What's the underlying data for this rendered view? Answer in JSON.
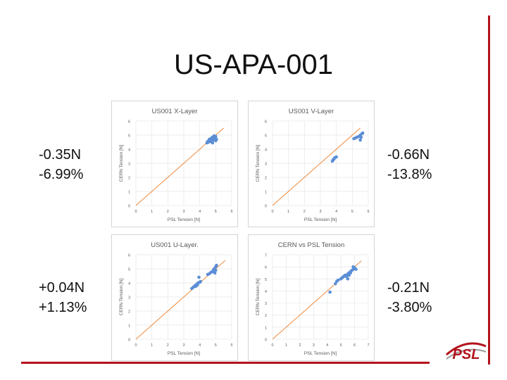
{
  "slide": {
    "title": "US-APA-001",
    "annotations": {
      "x_layer": [
        "-0.35N",
        "-6.99%"
      ],
      "v_layer": [
        "-0.66N",
        "-13.8%"
      ],
      "u_layer": [
        "+0.04N",
        "+1.13%"
      ],
      "all": [
        "-0.21N",
        "-3.80%"
      ]
    },
    "logo_text": "PSL"
  },
  "colors": {
    "points": "#5b8ed6",
    "fit_line": "#f08a3c",
    "accent": "#b3121c"
  },
  "chart_data": [
    {
      "type": "scatter",
      "title": "US001 X-Layer",
      "xlabel": "PSL Tension [N]",
      "ylabel": "CERN Tension [N]",
      "xlim": [
        0,
        6
      ],
      "ylim": [
        0,
        6
      ],
      "xticks": [
        0,
        1,
        2,
        3,
        4,
        5,
        6
      ],
      "yticks": [
        0,
        1,
        2,
        3,
        4,
        5,
        6
      ],
      "reference_line": [
        [
          0,
          0
        ],
        [
          5.5,
          5.5
        ]
      ],
      "x": [
        4.45,
        4.5,
        4.55,
        4.6,
        4.6,
        4.65,
        4.7,
        4.7,
        4.75,
        4.8,
        4.8,
        4.85,
        4.9,
        4.9,
        4.95,
        5.0,
        5.0,
        4.9,
        4.8,
        5.05
      ],
      "y": [
        4.45,
        4.55,
        4.5,
        4.6,
        4.7,
        4.55,
        4.75,
        4.65,
        4.8,
        4.6,
        4.85,
        4.7,
        4.9,
        4.75,
        4.85,
        4.9,
        4.6,
        4.95,
        4.45,
        4.7
      ]
    },
    {
      "type": "scatter",
      "title": "US001 V-Layer",
      "xlabel": "PSL Tension [N]",
      "ylabel": "CERN Tension [N]",
      "xlim": [
        0,
        6
      ],
      "ylim": [
        0,
        6
      ],
      "xticks": [
        0,
        1,
        2,
        3,
        4,
        5,
        6
      ],
      "yticks": [
        0,
        1,
        2,
        3,
        4,
        5,
        6
      ],
      "reference_line": [
        [
          0,
          0
        ],
        [
          5.5,
          5.5
        ]
      ],
      "x": [
        3.75,
        3.8,
        3.85,
        3.9,
        4.0,
        5.1,
        5.2,
        5.3,
        5.4,
        5.5,
        5.55,
        5.6,
        5.65,
        5.5
      ],
      "y": [
        3.15,
        3.25,
        3.3,
        3.4,
        3.45,
        4.75,
        4.8,
        4.85,
        4.9,
        5.0,
        4.85,
        5.1,
        5.15,
        4.65
      ]
    },
    {
      "type": "scatter",
      "title": "US001 U-Layer.",
      "xlabel": "PSL Tension [N]",
      "ylabel": "CERN Tension [N]",
      "xlim": [
        0,
        6
      ],
      "ylim": [
        0,
        6
      ],
      "xticks": [
        0,
        1,
        2,
        3,
        4,
        5,
        6
      ],
      "yticks": [
        0,
        1,
        2,
        3,
        4,
        5,
        6
      ],
      "reference_line": [
        [
          0,
          0
        ],
        [
          5.6,
          5.6
        ]
      ],
      "x": [
        3.5,
        3.6,
        3.7,
        3.75,
        3.8,
        3.85,
        3.9,
        4.0,
        4.05,
        3.95,
        4.5,
        4.6,
        4.7,
        4.8,
        4.85,
        4.9,
        5.0,
        5.0,
        5.05,
        4.95
      ],
      "y": [
        3.6,
        3.7,
        3.8,
        3.75,
        3.9,
        3.85,
        4.0,
        4.05,
        4.1,
        4.4,
        4.6,
        4.65,
        4.75,
        4.8,
        4.9,
        5.0,
        4.9,
        5.15,
        5.25,
        4.7
      ]
    },
    {
      "type": "scatter",
      "title": "CERN vs PSL Tension",
      "xlabel": "PSL Tension [N]",
      "ylabel": "CERN Tension [N]",
      "xlim": [
        0,
        7
      ],
      "ylim": [
        0,
        7
      ],
      "xticks": [
        0,
        1,
        2,
        3,
        4,
        5,
        6,
        7
      ],
      "yticks": [
        0,
        1,
        2,
        3,
        4,
        5,
        6,
        7
      ],
      "reference_line": [
        [
          0,
          0
        ],
        [
          6.5,
          6.5
        ]
      ],
      "x": [
        4.2,
        4.6,
        4.7,
        4.8,
        5.0,
        5.1,
        5.2,
        5.3,
        5.4,
        5.5,
        5.6,
        5.7,
        5.8,
        5.9,
        6.0,
        6.1,
        5.5,
        5.6,
        5.7,
        5.9
      ],
      "y": [
        3.9,
        4.6,
        4.8,
        4.9,
        5.0,
        5.1,
        5.2,
        5.3,
        5.2,
        5.4,
        5.5,
        5.6,
        5.7,
        5.8,
        5.9,
        5.8,
        5.0,
        5.3,
        5.5,
        6.0
      ]
    }
  ]
}
